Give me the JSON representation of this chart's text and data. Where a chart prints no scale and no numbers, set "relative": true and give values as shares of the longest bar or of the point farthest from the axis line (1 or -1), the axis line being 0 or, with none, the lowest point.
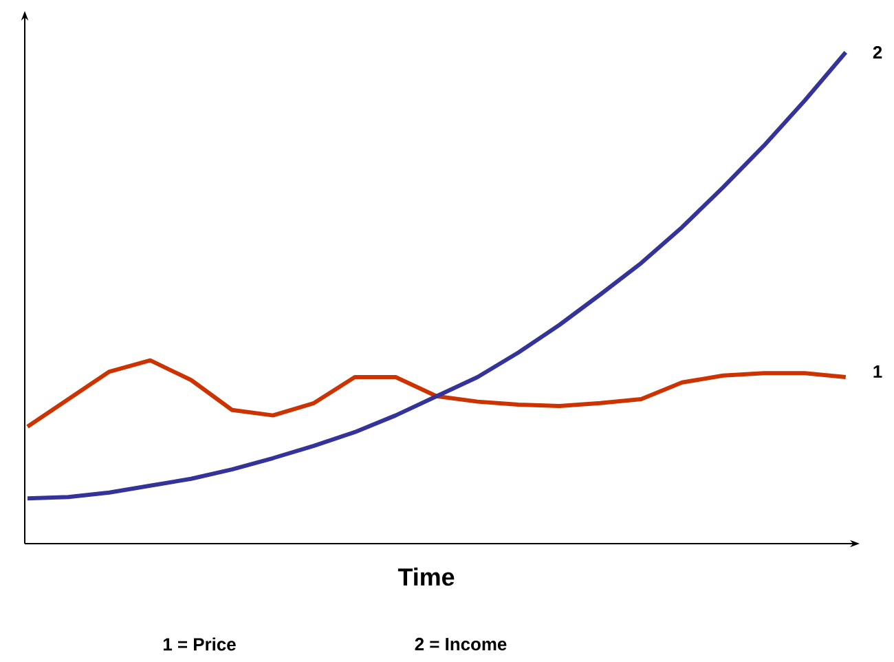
{
  "chart_data": {
    "type": "line",
    "relative": true,
    "xlabel": "Time",
    "categories": [
      null,
      null,
      null,
      null,
      null,
      null,
      null,
      null,
      null,
      null,
      null,
      null,
      null,
      null,
      null,
      null,
      null,
      null,
      null,
      null,
      null
    ],
    "series": [
      {
        "name": "1",
        "color": "#cc3300",
        "values": [
          0.238,
          0.294,
          0.35,
          0.373,
          0.333,
          0.272,
          0.261,
          0.286,
          0.339,
          0.339,
          0.3,
          0.289,
          0.283,
          0.28,
          0.286,
          0.294,
          0.328,
          0.342,
          0.347,
          0.347,
          0.339
        ]
      },
      {
        "name": "2",
        "color": "#333399",
        "values": [
          0.092,
          0.095,
          0.104,
          0.118,
          0.132,
          0.151,
          0.174,
          0.199,
          0.227,
          0.261,
          0.3,
          0.339,
          0.389,
          0.445,
          0.507,
          0.571,
          0.644,
          0.725,
          0.81,
          0.902,
          1
        ]
      }
    ],
    "annotations": [
      "1 = Price",
      "2 = Income"
    ]
  }
}
